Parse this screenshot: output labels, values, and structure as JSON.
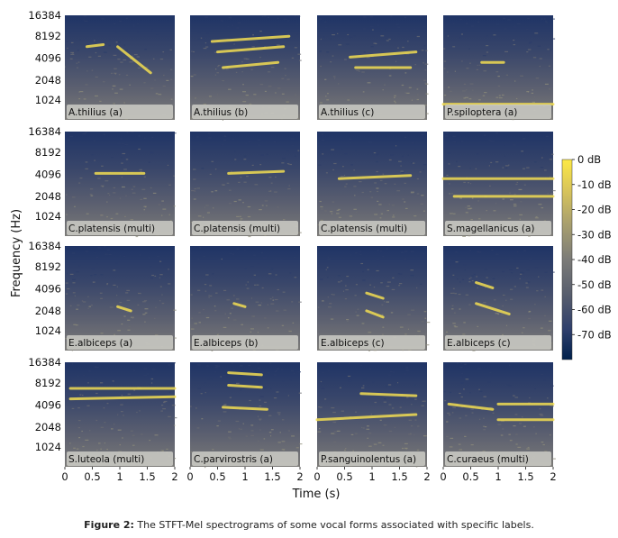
{
  "chart_data": {
    "type": "heatmap",
    "title": "",
    "xlabel": "Time (s)",
    "ylabel": "Frequency (Hz)",
    "xlim": [
      0,
      2
    ],
    "x_ticks": [
      "0",
      "0.5",
      "1",
      "1.5",
      "2"
    ],
    "y_ticks": [
      "1024",
      "2048",
      "4096",
      "8192",
      "16384"
    ],
    "y_scale": "mel (log-like)",
    "colorbar": {
      "ticks": [
        "0 dB",
        "-10 dB",
        "-20 dB",
        "-30 dB",
        "-40 dB",
        "-50 dB",
        "-60 dB",
        "-70 dB"
      ],
      "range_db": [
        -80,
        0
      ],
      "colormap": "cividis"
    },
    "grid": "4x4",
    "panels": [
      {
        "label": "A.thilius (a)"
      },
      {
        "label": "A.thilius (b)"
      },
      {
        "label": "A.thilius (c)"
      },
      {
        "label": "P.spiloptera (a)"
      },
      {
        "label": "C.platensis (multi)"
      },
      {
        "label": "C.platensis (multi)"
      },
      {
        "label": "C.platensis (multi)"
      },
      {
        "label": "S.magellanicus (a)"
      },
      {
        "label": "E.albiceps (a)"
      },
      {
        "label": "E.albiceps (b)"
      },
      {
        "label": "E.albiceps (c)"
      },
      {
        "label": "E.albiceps (c)"
      },
      {
        "label": "S.luteola (multi)"
      },
      {
        "label": "C.parvirostris (a)"
      },
      {
        "label": "P.sanguinolentus (a)"
      },
      {
        "label": "C.curaeus (multi)"
      }
    ]
  },
  "caption": {
    "label": "Figure 2:",
    "text": " The STFT-Mel spectrograms of some vocal forms associated with specific labels."
  },
  "colors": {
    "low": "#00204c",
    "mid": "#7c7b78",
    "high": "#ffe945"
  }
}
